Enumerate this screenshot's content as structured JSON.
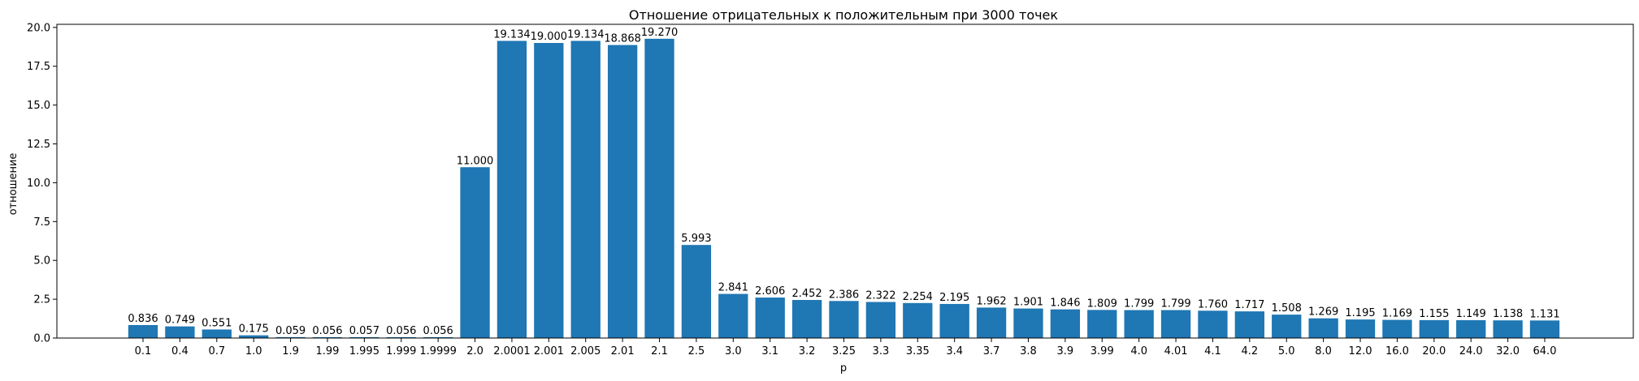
{
  "chart_data": {
    "type": "bar",
    "title": "Отношение отрицательных к положительным при 3000 точек",
    "xlabel": "p",
    "ylabel": "отношение",
    "ylim": [
      0,
      20.2
    ],
    "yticks": [
      "0.0",
      "2.5",
      "5.0",
      "7.5",
      "10.0",
      "12.5",
      "15.0",
      "17.5",
      "20.0"
    ],
    "grid": false,
    "bar_color": "#1f77b4",
    "categories": [
      "0.1",
      "0.4",
      "0.7",
      "1.0",
      "1.9",
      "1.99",
      "1.995",
      "1.999",
      "1.9999",
      "2.0",
      "2.0001",
      "2.001",
      "2.005",
      "2.01",
      "2.1",
      "2.5",
      "3.0",
      "3.1",
      "3.2",
      "3.25",
      "3.3",
      "3.35",
      "3.4",
      "3.7",
      "3.8",
      "3.9",
      "3.99",
      "4.0",
      "4.01",
      "4.1",
      "4.2",
      "5.0",
      "8.0",
      "12.0",
      "16.0",
      "20.0",
      "24.0",
      "32.0",
      "64.0"
    ],
    "values": [
      0.836,
      0.749,
      0.551,
      0.175,
      0.059,
      0.056,
      0.057,
      0.056,
      0.056,
      11.0,
      19.134,
      19.0,
      19.134,
      18.868,
      19.27,
      5.993,
      2.841,
      2.606,
      2.452,
      2.386,
      2.322,
      2.254,
      2.195,
      1.962,
      1.901,
      1.846,
      1.809,
      1.799,
      1.799,
      1.76,
      1.717,
      1.508,
      1.269,
      1.195,
      1.169,
      1.155,
      1.149,
      1.138,
      1.131
    ],
    "value_labels": [
      "0.836",
      "0.749",
      "0.551",
      "0.175",
      "0.059",
      "0.056",
      "0.057",
      "0.056",
      "0.056",
      "11.000",
      "19.134",
      "19.000",
      "19.134",
      "18.868",
      "19.270",
      "5.993",
      "2.841",
      "2.606",
      "2.452",
      "2.386",
      "2.322",
      "2.254",
      "2.195",
      "1.962",
      "1.901",
      "1.846",
      "1.809",
      "1.799",
      "1.799",
      "1.760",
      "1.717",
      "1.508",
      "1.269",
      "1.195",
      "1.169",
      "1.155",
      "1.149",
      "1.138",
      "1.131"
    ]
  }
}
